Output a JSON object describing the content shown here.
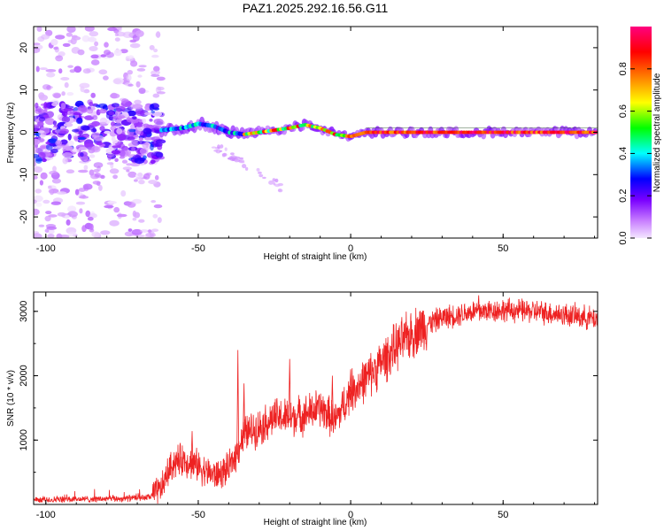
{
  "title": "PAZ1.2025.292.16.56.G11",
  "chart_data": [
    {
      "type": "heatmap",
      "xlabel": "Height of straight line (km)",
      "ylabel": "Frequency (Hz)",
      "xlim": [
        -104,
        81
      ],
      "ylim": [
        -25,
        25
      ],
      "xticks": [
        -100,
        -50,
        0,
        50
      ],
      "yticks": [
        -20,
        -10,
        0,
        10,
        20
      ],
      "ridge": {
        "height_km": [
          -62,
          -55,
          -50,
          -45,
          -40,
          -35,
          -30,
          -25,
          -20,
          -15,
          -10,
          -5,
          0,
          5,
          10,
          20,
          30,
          40,
          50,
          60,
          70,
          80
        ],
        "frequency_hz": [
          0.5,
          1,
          2,
          1.5,
          0,
          -0.5,
          0,
          0.5,
          1,
          1.8,
          1,
          -0.5,
          -1,
          0,
          0,
          0,
          0,
          0,
          0,
          0,
          0,
          0
        ]
      },
      "scatter_region_km": [
        -104,
        -62
      ],
      "colorbar": {
        "label": "Normalized spectral amplitude",
        "range": [
          0,
          1
        ],
        "ticks": [
          0.0,
          0.2,
          0.4,
          0.6,
          0.8
        ],
        "tick_labels": [
          "0.0",
          "0.2",
          "0.4",
          "0.6",
          "0.8"
        ],
        "colors": [
          "#f4e6ff",
          "#c980ff",
          "#7a00ff",
          "#0000ff",
          "#00ffff",
          "#00ff00",
          "#ffff00",
          "#ff8000",
          "#ff0000",
          "#ff0080"
        ]
      }
    },
    {
      "type": "line",
      "xlabel": "Height of straight line (km)",
      "ylabel": "SNR (10 * v/v)",
      "xlim": [
        -104,
        81
      ],
      "ylim": [
        0,
        3300
      ],
      "xticks": [
        -100,
        -50,
        0,
        50
      ],
      "yticks": [
        1000,
        2000,
        3000
      ],
      "color": "#ee2222",
      "trend": {
        "x": [
          -104,
          -90,
          -75,
          -66,
          -62,
          -60,
          -58,
          -55,
          -50,
          -47,
          -44,
          -40,
          -37,
          -35,
          -30,
          -25,
          -20,
          -15,
          -10,
          -5,
          0,
          5,
          10,
          15,
          20,
          25,
          30,
          40,
          50,
          60,
          70,
          81
        ],
        "y": [
          70,
          80,
          90,
          110,
          250,
          500,
          650,
          700,
          600,
          500,
          450,
          550,
          850,
          1100,
          1200,
          1350,
          1350,
          1400,
          1500,
          1300,
          1750,
          1950,
          2200,
          2450,
          2650,
          2800,
          2900,
          3000,
          3020,
          3000,
          2950,
          2880
        ]
      },
      "spikes": [
        {
          "x": -52,
          "y": 1140
        },
        {
          "x": -37,
          "y": 2400
        },
        {
          "x": -35,
          "y": 1880
        },
        {
          "x": -20,
          "y": 2260
        },
        {
          "x": -6,
          "y": 2000
        },
        {
          "x": 0,
          "y": 2100
        },
        {
          "x": 42,
          "y": 3250
        }
      ]
    }
  ]
}
